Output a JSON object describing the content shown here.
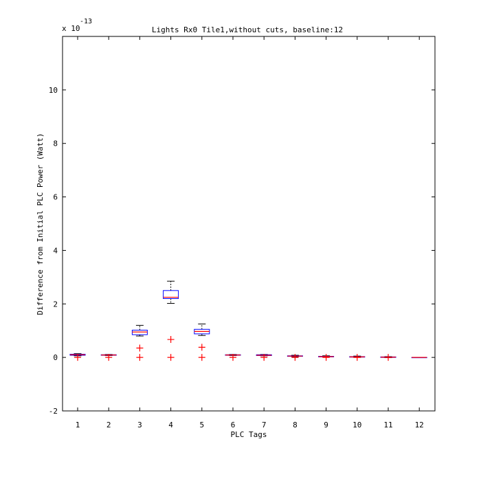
{
  "chart_data": {
    "type": "boxplot",
    "title": "Lights Rx0 Tile1,without cuts, baseline:12",
    "xlabel": "PLC Tags",
    "ylabel": "Difference from Initial PLC Power (Watt)",
    "y_multiplier_label": "x 10",
    "y_multiplier_exponent": "-13",
    "ylim": [
      -2,
      12
    ],
    "yticks": [
      -2,
      0,
      2,
      4,
      6,
      8,
      10
    ],
    "ytick_labels": [
      "-2",
      "0",
      "2",
      "4",
      "6",
      "8",
      "10"
    ],
    "categories": [
      "1",
      "2",
      "3",
      "4",
      "5",
      "6",
      "7",
      "8",
      "9",
      "10",
      "11",
      "12"
    ],
    "colors": {
      "box": "#0000ff",
      "median": "#ff0000",
      "whisker": "#000000",
      "outlier": "#ff0000",
      "axes": "#000000"
    },
    "boxes": [
      {
        "category": "1",
        "q1": 0.08,
        "median": 0.1,
        "q3": 0.12,
        "whisker_low": 0.06,
        "whisker_high": 0.14,
        "outliers": [
          0.0
        ]
      },
      {
        "category": "2",
        "q1": 0.08,
        "median": 0.09,
        "q3": 0.1,
        "whisker_low": 0.07,
        "whisker_high": 0.11,
        "outliers": [
          0.0
        ]
      },
      {
        "category": "3",
        "q1": 0.85,
        "median": 0.95,
        "q3": 1.02,
        "whisker_low": 0.8,
        "whisker_high": 1.2,
        "outliers": [
          0.35,
          0.0
        ]
      },
      {
        "category": "4",
        "q1": 2.2,
        "median": 2.25,
        "q3": 2.5,
        "whisker_low": 2.02,
        "whisker_high": 2.85,
        "outliers": [
          0.67,
          0.0
        ]
      },
      {
        "category": "5",
        "q1": 0.88,
        "median": 0.97,
        "q3": 1.05,
        "whisker_low": 0.82,
        "whisker_high": 1.25,
        "outliers": [
          0.38,
          0.0
        ]
      },
      {
        "category": "6",
        "q1": 0.08,
        "median": 0.09,
        "q3": 0.1,
        "whisker_low": 0.07,
        "whisker_high": 0.11,
        "outliers": [
          0.0
        ]
      },
      {
        "category": "7",
        "q1": 0.07,
        "median": 0.08,
        "q3": 0.1,
        "whisker_low": 0.06,
        "whisker_high": 0.11,
        "outliers": [
          0.0
        ]
      },
      {
        "category": "8",
        "q1": 0.04,
        "median": 0.05,
        "q3": 0.06,
        "whisker_low": 0.03,
        "whisker_high": 0.08,
        "outliers": [
          0.0
        ]
      },
      {
        "category": "9",
        "q1": 0.02,
        "median": 0.03,
        "q3": 0.04,
        "whisker_low": 0.01,
        "whisker_high": 0.06,
        "outliers": [
          0.0
        ]
      },
      {
        "category": "10",
        "q1": 0.01,
        "median": 0.02,
        "q3": 0.03,
        "whisker_low": 0.0,
        "whisker_high": 0.05,
        "outliers": [
          0.0
        ]
      },
      {
        "category": "11",
        "q1": 0.0,
        "median": 0.01,
        "q3": 0.02,
        "whisker_low": -0.01,
        "whisker_high": 0.03,
        "outliers": [
          0.0
        ]
      },
      {
        "category": "12",
        "q1": 0.0,
        "median": 0.0,
        "q3": 0.0,
        "whisker_low": 0.0,
        "whisker_high": 0.0,
        "outliers": []
      }
    ]
  }
}
